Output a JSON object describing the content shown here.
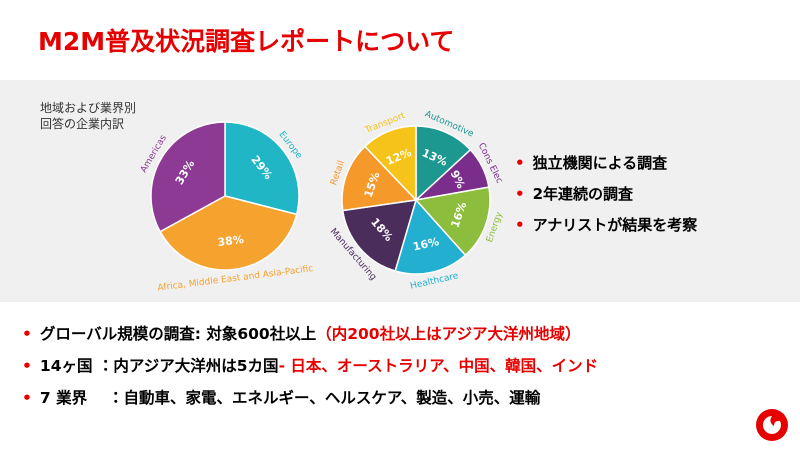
{
  "title": "M2M普及状況調査レポートについて",
  "chart_caption": [
    "地域および業界別",
    "回答の企業内訳"
  ],
  "chart_data": [
    {
      "type": "pie",
      "categories": [
        "Europe",
        "Africa, Middle East and Asia-Pacific",
        "Americas"
      ],
      "values": [
        29,
        38,
        33
      ],
      "value_labels": [
        "29%",
        "38%",
        "33%"
      ],
      "colors": [
        "#20b6c6",
        "#f5a22e",
        "#8c3a94"
      ]
    },
    {
      "type": "pie",
      "categories": [
        "Automotive",
        "Cons Elec",
        "Energy",
        "Healthcare",
        "Manufacturing",
        "Retail",
        "Transport"
      ],
      "values": [
        13,
        9,
        16,
        16,
        18,
        15,
        12
      ],
      "value_labels": [
        "13%",
        "9%",
        "16%",
        "16%",
        "18%",
        "15%",
        "12%"
      ],
      "colors": [
        "#1c9891",
        "#7b2d8c",
        "#8cbd3c",
        "#22afd0",
        "#4b2d5c",
        "#f59a2a",
        "#f5c31a"
      ]
    }
  ],
  "side_bullets": [
    "独立機関による調査",
    "2年連続の調査",
    "アナリストが結果を考察"
  ],
  "bottom_bullets": [
    [
      {
        "text": "グローバル規模の調査: 対象600社以上",
        "color": "#000000"
      },
      {
        "text": "（内200社以上はアジア大洋州地域）",
        "color": "#e60000"
      }
    ],
    [
      {
        "text": "14ヶ国 ：内アジア大洋州は5カ国",
        "color": "#000000"
      },
      {
        "text": "- 日本、オーストラリア、中国、韓国、インド",
        "color": "#e60000"
      }
    ],
    [
      {
        "text": "7 業界 　：自動車、家電、エネルギー、ヘルスケア、製造、小売、運輸",
        "color": "#000000"
      }
    ]
  ]
}
